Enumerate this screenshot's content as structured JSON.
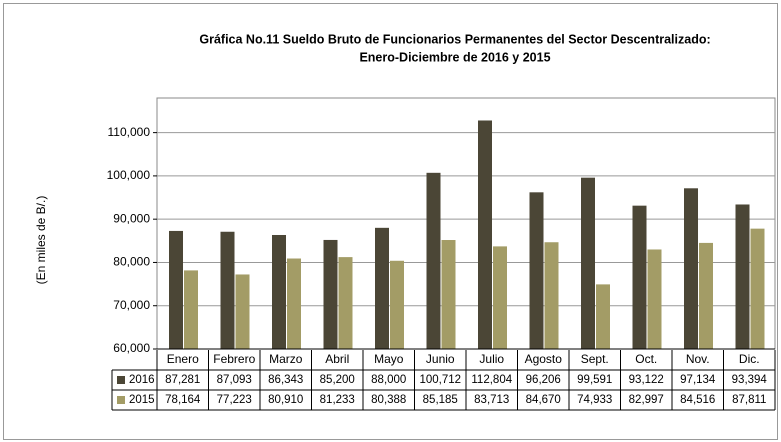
{
  "chart_data": {
    "type": "bar",
    "title": [
      "Gráfica No.11 Sueldo Bruto de Funcionarios Permanentes del Sector Descentralizado:",
      "Enero-Diciembre de 2016 y 2015"
    ],
    "y_label": "(En miles de B/.)",
    "categories": [
      "Enero",
      "Febrero",
      "Marzo",
      "Abril",
      "Mayo",
      "Junio",
      "Julio",
      "Agosto",
      "Sept.",
      "Oct.",
      "Nov.",
      "Dic."
    ],
    "series": [
      {
        "name": "2016",
        "color": "#4b4636",
        "values": [
          87281,
          87093,
          86343,
          85200,
          88000,
          100712,
          112804,
          96206,
          99591,
          93122,
          97134,
          93394
        ],
        "value_labels": [
          "87,281",
          "87,093",
          "86,343",
          "85,200",
          "88,000",
          "100,712",
          "112,804",
          "96,206",
          "99,591",
          "93,122",
          "97,134",
          "93,394"
        ]
      },
      {
        "name": "2015",
        "color": "#a39c66",
        "values": [
          78164,
          77223,
          80910,
          81233,
          80388,
          85185,
          83713,
          84670,
          74933,
          82997,
          84516,
          87811
        ],
        "value_labels": [
          "78,164",
          "77,223",
          "80,910",
          "81,233",
          "80,388",
          "85,185",
          "83,713",
          "84,670",
          "74,933",
          "82,997",
          "84,516",
          "87,811"
        ]
      }
    ],
    "ylim": [
      60000,
      118000
    ],
    "yticks": [
      {
        "value": 60000,
        "label": "60,000"
      },
      {
        "value": 70000,
        "label": "70,000"
      },
      {
        "value": 80000,
        "label": "80,000"
      },
      {
        "value": 90000,
        "label": "90,000"
      },
      {
        "value": 100000,
        "label": "100,000"
      },
      {
        "value": 110000,
        "label": "110,000"
      }
    ],
    "grid": true
  }
}
